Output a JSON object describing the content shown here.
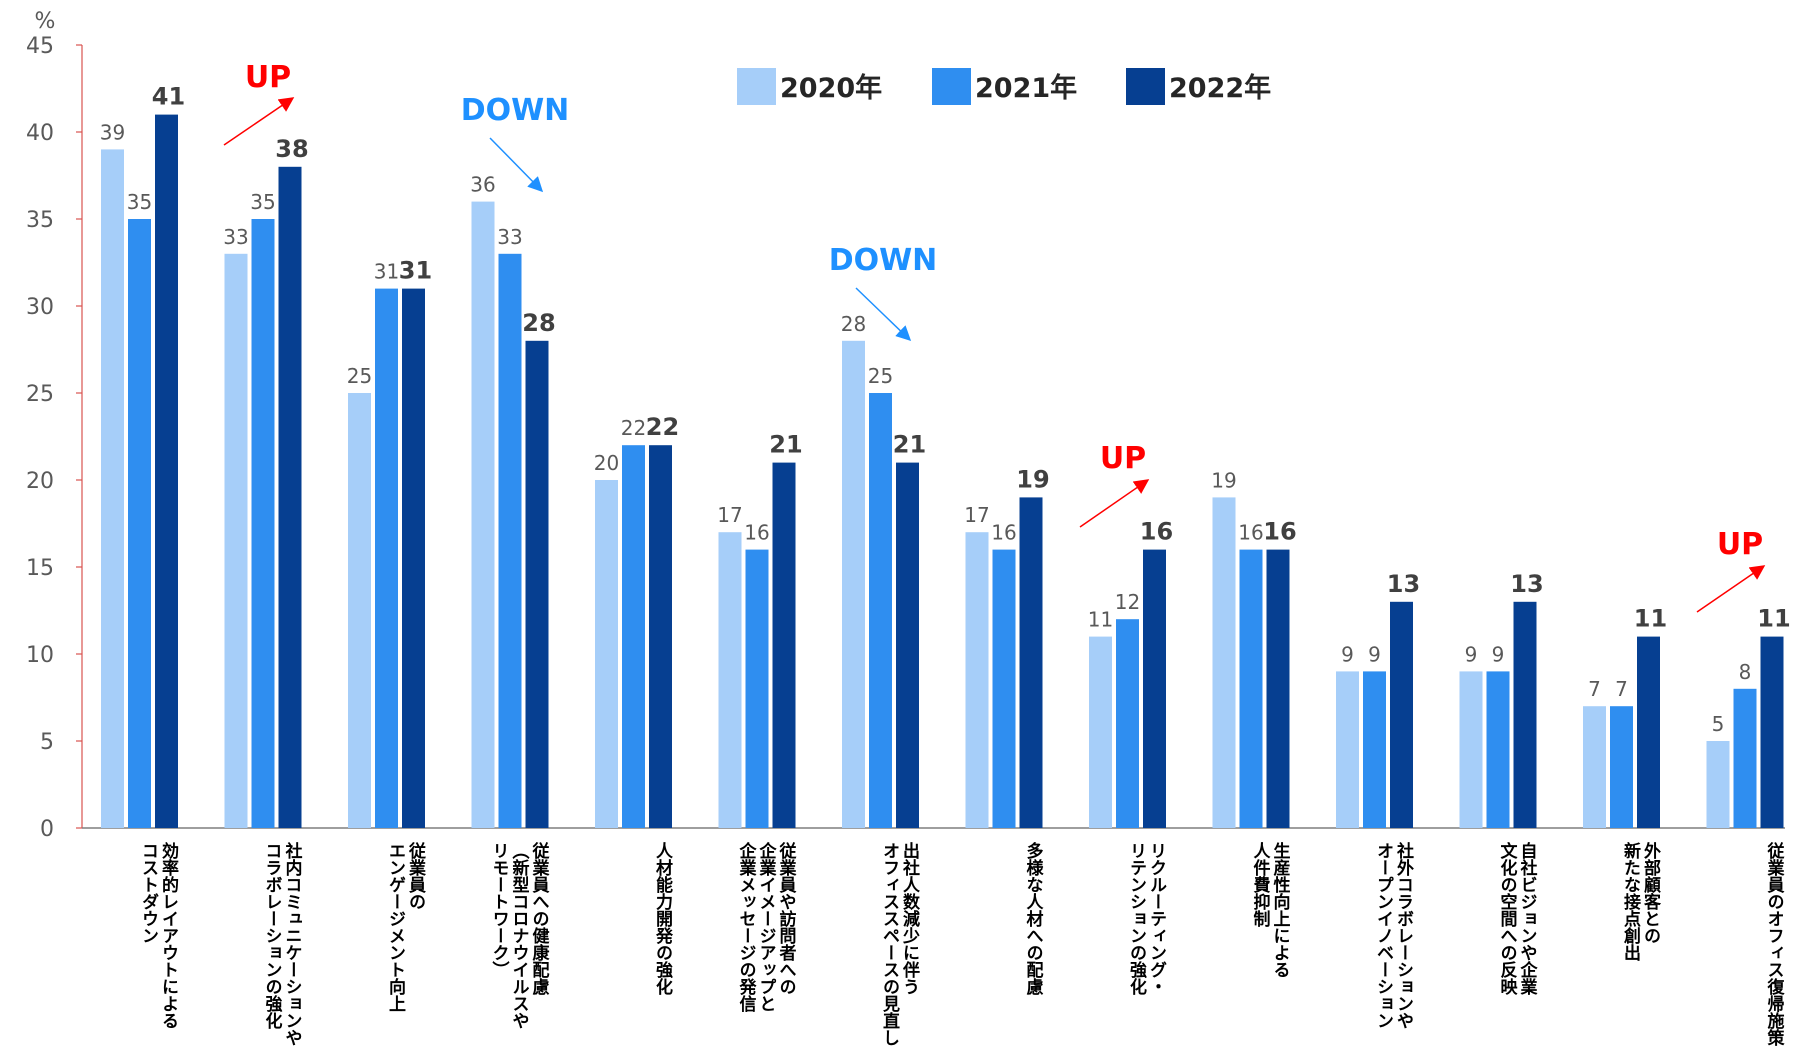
{
  "chart_data": {
    "type": "bar",
    "unit_label": "%",
    "ylim": [
      0,
      45
    ],
    "yticks": [
      0,
      5,
      10,
      15,
      20,
      25,
      30,
      35,
      40,
      45
    ],
    "grid": false,
    "legend_position": "top-center",
    "categories": [
      [
        "効率的レイアウトによる",
        "コストダウン"
      ],
      [
        "社内コミュニケーションや",
        "コラボレーションの強化"
      ],
      [
        "従業員の",
        "エンゲージメント向上"
      ],
      [
        "従業員への健康配慮",
        "（新型コロナウイルスや",
        "リモートワーク）"
      ],
      [
        "人材能力開発の強化"
      ],
      [
        "従業員や訪問者への",
        "企業イメージアップと",
        "企業メッセージの発信"
      ],
      [
        "出社人数減少に伴う",
        "オフィススペースの見直し"
      ],
      [
        "多様な人材への配慮"
      ],
      [
        "リクルーティング・",
        "リテンションの強化"
      ],
      [
        "生産性向上による",
        "人件費抑制"
      ],
      [
        "社外コラボレーションや",
        "オープンイノベーション"
      ],
      [
        "自社ビジョンや企業",
        "文化の空間への反映"
      ],
      [
        "外部顧客との",
        "新たな接点創出"
      ],
      [
        "従業員のオフィス復帰施策"
      ]
    ],
    "series": [
      {
        "name": "2020年",
        "color": "#a6cef9",
        "values": [
          39,
          33,
          25,
          36,
          20,
          17,
          28,
          17,
          11,
          19,
          9,
          9,
          7,
          5
        ]
      },
      {
        "name": "2021年",
        "color": "#2f8ef0",
        "values": [
          35,
          35,
          31,
          33,
          22,
          16,
          25,
          16,
          12,
          16,
          9,
          9,
          7,
          8
        ]
      },
      {
        "name": "2022年",
        "color": "#063f91",
        "values": [
          41,
          38,
          31,
          28,
          22,
          21,
          21,
          19,
          16,
          16,
          13,
          13,
          11,
          11
        ]
      }
    ],
    "annotations": [
      {
        "text": "UP",
        "category_index": 1,
        "trend": "up",
        "color": "#ff0000"
      },
      {
        "text": "DOWN",
        "category_index": 3,
        "trend": "down",
        "color": "#1e90ff"
      },
      {
        "text": "DOWN",
        "category_index": 6,
        "trend": "down",
        "color": "#1e90ff"
      },
      {
        "text": "UP",
        "category_index": 8,
        "trend": "up",
        "color": "#ff0000"
      },
      {
        "text": "UP",
        "category_index": 13,
        "trend": "up",
        "color": "#ff0000"
      }
    ]
  }
}
